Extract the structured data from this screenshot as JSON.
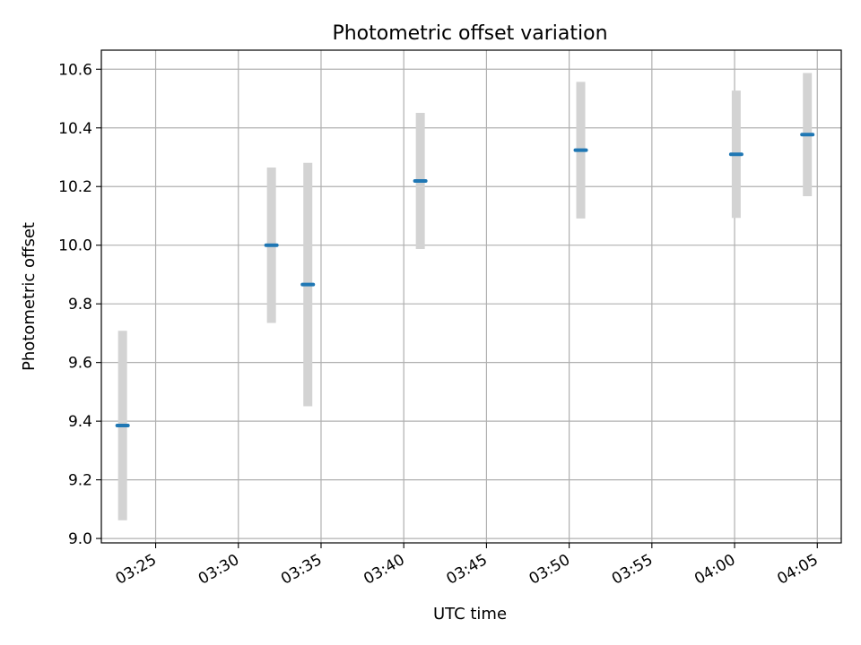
{
  "chart_data": {
    "type": "scatter",
    "title": "Photometric offset variation",
    "xlabel": "UTC time",
    "ylabel": "Photometric offset",
    "ylim": [
      8.985,
      10.665
    ],
    "xlim": [
      "03:21:43",
      "04:06:27"
    ],
    "grid": true,
    "x_ticks": [
      "03:25",
      "03:30",
      "03:35",
      "03:40",
      "03:45",
      "03:50",
      "03:55",
      "04:00",
      "04:05"
    ],
    "y_ticks": [
      "9.0",
      "9.2",
      "9.4",
      "9.6",
      "9.8",
      "10.0",
      "10.2",
      "10.4",
      "10.6"
    ],
    "point_color": "#1f77b4",
    "errorbar_color": "#d3d3d3",
    "series": [
      {
        "points": [
          {
            "x": "03:23:00",
            "y": 9.385,
            "yerr": 0.323
          },
          {
            "x": "03:32:00",
            "y": 10.0,
            "yerr": 0.265
          },
          {
            "x": "03:34:12",
            "y": 9.866,
            "yerr": 0.415
          },
          {
            "x": "03:41:00",
            "y": 10.219,
            "yerr": 0.232
          },
          {
            "x": "03:50:42",
            "y": 10.324,
            "yerr": 0.233
          },
          {
            "x": "04:00:06",
            "y": 10.31,
            "yerr": 0.217
          },
          {
            "x": "04:04:24",
            "y": 10.377,
            "yerr": 0.21
          }
        ]
      }
    ]
  }
}
